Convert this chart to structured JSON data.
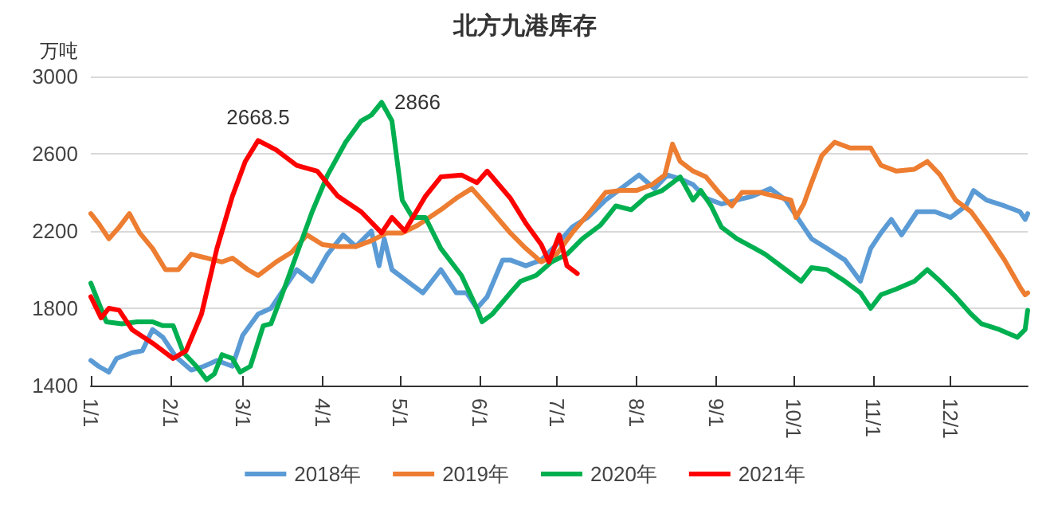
{
  "chart_data": {
    "type": "line",
    "title": "北方九港库存",
    "ylabel": "万吨",
    "xlim": [
      "--01-01",
      "--12-31"
    ],
    "xticks": [
      {
        "value": "--01-01",
        "label": "1/1"
      },
      {
        "value": "--02-01",
        "label": "2/1"
      },
      {
        "value": "--03-01",
        "label": "3/1"
      },
      {
        "value": "--04-01",
        "label": "4/1"
      },
      {
        "value": "--05-01",
        "label": "5/1"
      },
      {
        "value": "--06-01",
        "label": "6/1"
      },
      {
        "value": "--07-01",
        "label": "7/1"
      },
      {
        "value": "--08-01",
        "label": "8/1"
      },
      {
        "value": "--09-01",
        "label": "9/1"
      },
      {
        "value": "--10-01",
        "label": "10/1"
      },
      {
        "value": "--11-01",
        "label": "11/1"
      },
      {
        "value": "--12-01",
        "label": "12/1"
      }
    ],
    "ylim": [
      1400,
      3000
    ],
    "yticks": [
      1400,
      1800,
      2200,
      2600,
      3000
    ],
    "grid": "y",
    "legend": "bottom",
    "marker": "none",
    "line_style": "solid",
    "annotations": [
      {
        "text": "2668.5",
        "x": "--03-07",
        "y": 2668.5
      },
      {
        "text": "2866",
        "x": "--04-24",
        "y": 2866
      }
    ],
    "series": [
      {
        "name": "2018年",
        "color": "#5b9bd5",
        "x": [
          "--01-01",
          "--01-04",
          "--01-08",
          "--01-11",
          "--01-17",
          "--01-21",
          "--01-25",
          "--01-29",
          "--02-03",
          "--02-09",
          "--02-14",
          "--02-19",
          "--02-25",
          "--03-01",
          "--03-07",
          "--03-12",
          "--03-16",
          "--03-22",
          "--03-28",
          "--04-03",
          "--04-09",
          "--04-14",
          "--04-20",
          "--04-23",
          "--04-25",
          "--04-28",
          "--05-04",
          "--05-10",
          "--05-17",
          "--05-23",
          "--05-27",
          "--05-31",
          "--06-04",
          "--06-10",
          "--06-13",
          "--06-19",
          "--06-25",
          "--07-01",
          "--07-07",
          "--07-13",
          "--07-20",
          "--07-26",
          "--08-02",
          "--08-08",
          "--08-13",
          "--08-18",
          "--08-23",
          "--08-28",
          "--09-03",
          "--09-09",
          "--09-15",
          "--09-22",
          "--09-28",
          "--10-04",
          "--10-08",
          "--10-14",
          "--10-21",
          "--10-27",
          "--10-31",
          "--11-04",
          "--11-08",
          "--11-12",
          "--11-18",
          "--11-25",
          "--12-01",
          "--12-07",
          "--12-10",
          "--12-15",
          "--12-22",
          "--12-28",
          "--12-30",
          "--12-31"
        ],
        "values": [
          1530,
          1500,
          1470,
          1540,
          1570,
          1580,
          1690,
          1650,
          1550,
          1480,
          1500,
          1530,
          1500,
          1660,
          1770,
          1800,
          1880,
          2000,
          1940,
          2080,
          2180,
          2120,
          2200,
          2020,
          2160,
          2000,
          1940,
          1880,
          2000,
          1880,
          1880,
          1800,
          1860,
          2050,
          2050,
          2020,
          2050,
          2130,
          2220,
          2270,
          2360,
          2420,
          2490,
          2420,
          2490,
          2470,
          2440,
          2370,
          2340,
          2360,
          2380,
          2420,
          2360,
          2240,
          2160,
          2110,
          2050,
          1940,
          2110,
          2190,
          2260,
          2180,
          2300,
          2300,
          2270,
          2330,
          2410,
          2360,
          2330,
          2300,
          2260,
          2290
        ]
      },
      {
        "name": "2019年",
        "color": "#ed7d31",
        "x": [
          "--01-01",
          "--01-04",
          "--01-08",
          "--01-12",
          "--01-16",
          "--01-20",
          "--01-25",
          "--01-30",
          "--02-04",
          "--02-09",
          "--02-15",
          "--02-21",
          "--02-25",
          "--03-03",
          "--03-07",
          "--03-14",
          "--03-20",
          "--03-26",
          "--04-01",
          "--04-07",
          "--04-14",
          "--04-20",
          "--04-26",
          "--05-02",
          "--05-08",
          "--05-17",
          "--05-23",
          "--05-29",
          "--06-04",
          "--06-13",
          "--06-19",
          "--06-25",
          "--07-01",
          "--07-07",
          "--07-14",
          "--07-20",
          "--07-26",
          "--08-01",
          "--08-07",
          "--08-12",
          "--08-15",
          "--08-18",
          "--08-23",
          "--08-28",
          "--09-02",
          "--09-07",
          "--09-11",
          "--09-18",
          "--09-24",
          "--09-30",
          "--10-02",
          "--10-05",
          "--10-08",
          "--10-12",
          "--10-17",
          "--10-23",
          "--10-31",
          "--11-04",
          "--11-10",
          "--11-17",
          "--11-22",
          "--11-27",
          "--12-03",
          "--12-09",
          "--12-15",
          "--12-22",
          "--12-28",
          "--12-30",
          "--12-31"
        ],
        "values": [
          2290,
          2240,
          2160,
          2220,
          2290,
          2190,
          2110,
          2000,
          2000,
          2080,
          2060,
          2040,
          2060,
          2000,
          1970,
          2040,
          2090,
          2180,
          2130,
          2120,
          2120,
          2150,
          2190,
          2190,
          2230,
          2310,
          2370,
          2420,
          2330,
          2190,
          2110,
          2040,
          2080,
          2190,
          2300,
          2400,
          2410,
          2410,
          2440,
          2490,
          2650,
          2560,
          2510,
          2480,
          2400,
          2330,
          2400,
          2400,
          2380,
          2360,
          2270,
          2340,
          2450,
          2590,
          2660,
          2630,
          2630,
          2540,
          2510,
          2520,
          2560,
          2490,
          2360,
          2300,
          2190,
          2050,
          1910,
          1870,
          1880
        ]
      },
      {
        "name": "2020年",
        "color": "#00b050",
        "x": [
          "--01-01",
          "--01-04",
          "--01-07",
          "--01-13",
          "--01-19",
          "--01-25",
          "--01-29",
          "--02-02",
          "--02-06",
          "--02-11",
          "--02-15",
          "--02-18",
          "--02-21",
          "--02-25",
          "--02-28",
          "--03-04",
          "--03-09",
          "--03-12",
          "--03-16",
          "--03-22",
          "--03-28",
          "--04-03",
          "--04-10",
          "--04-16",
          "--04-20",
          "--04-24",
          "--04-28",
          "--05-02",
          "--05-06",
          "--05-11",
          "--05-17",
          "--05-25",
          "--05-31",
          "--06-02",
          "--06-06",
          "--06-13",
          "--06-17",
          "--06-23",
          "--06-29",
          "--07-05",
          "--07-11",
          "--07-18",
          "--07-24",
          "--07-30",
          "--08-05",
          "--08-11",
          "--08-18",
          "--08-23",
          "--08-26",
          "--08-30",
          "--09-03",
          "--09-09",
          "--09-16",
          "--09-20",
          "--09-28",
          "--10-04",
          "--10-08",
          "--10-14",
          "--10-21",
          "--10-27",
          "--10-31",
          "--11-04",
          "--11-10",
          "--11-17",
          "--11-22",
          "--11-27",
          "--12-03",
          "--12-09",
          "--12-13",
          "--12-20",
          "--12-27",
          "--12-30",
          "--12-31"
        ],
        "values": [
          1930,
          1830,
          1730,
          1720,
          1730,
          1730,
          1710,
          1710,
          1570,
          1500,
          1430,
          1460,
          1560,
          1540,
          1470,
          1500,
          1710,
          1720,
          1860,
          2080,
          2300,
          2490,
          2660,
          2770,
          2800,
          2866,
          2770,
          2360,
          2270,
          2270,
          2110,
          1970,
          1800,
          1730,
          1770,
          1880,
          1940,
          1970,
          2040,
          2080,
          2160,
          2230,
          2330,
          2310,
          2380,
          2410,
          2480,
          2360,
          2410,
          2330,
          2220,
          2160,
          2110,
          2080,
          2000,
          1940,
          2010,
          2000,
          1940,
          1880,
          1800,
          1870,
          1900,
          1940,
          2000,
          1940,
          1860,
          1770,
          1720,
          1690,
          1650,
          1690,
          1790
        ]
      },
      {
        "name": "2021年",
        "color": "#ff0000",
        "x": [
          "--01-01",
          "--01-05",
          "--01-08",
          "--01-12",
          "--01-17",
          "--01-25",
          "--02-02",
          "--02-07",
          "--02-13",
          "--02-19",
          "--02-25",
          "--03-02",
          "--03-07",
          "--03-14",
          "--03-22",
          "--03-30",
          "--04-07",
          "--04-16",
          "--04-24",
          "--04-28",
          "--05-03",
          "--05-11",
          "--05-17",
          "--05-25",
          "--05-31",
          "--06-04",
          "--06-13",
          "--06-19",
          "--06-25",
          "--06-28",
          "--07-02",
          "--07-05",
          "--07-09"
        ],
        "values": [
          1860,
          1750,
          1800,
          1790,
          1690,
          1620,
          1540,
          1580,
          1770,
          2110,
          2380,
          2560,
          2668.5,
          2620,
          2540,
          2510,
          2380,
          2300,
          2190,
          2270,
          2200,
          2380,
          2480,
          2490,
          2450,
          2510,
          2370,
          2240,
          2130,
          2040,
          2180,
          2020,
          1980
        ]
      }
    ]
  }
}
